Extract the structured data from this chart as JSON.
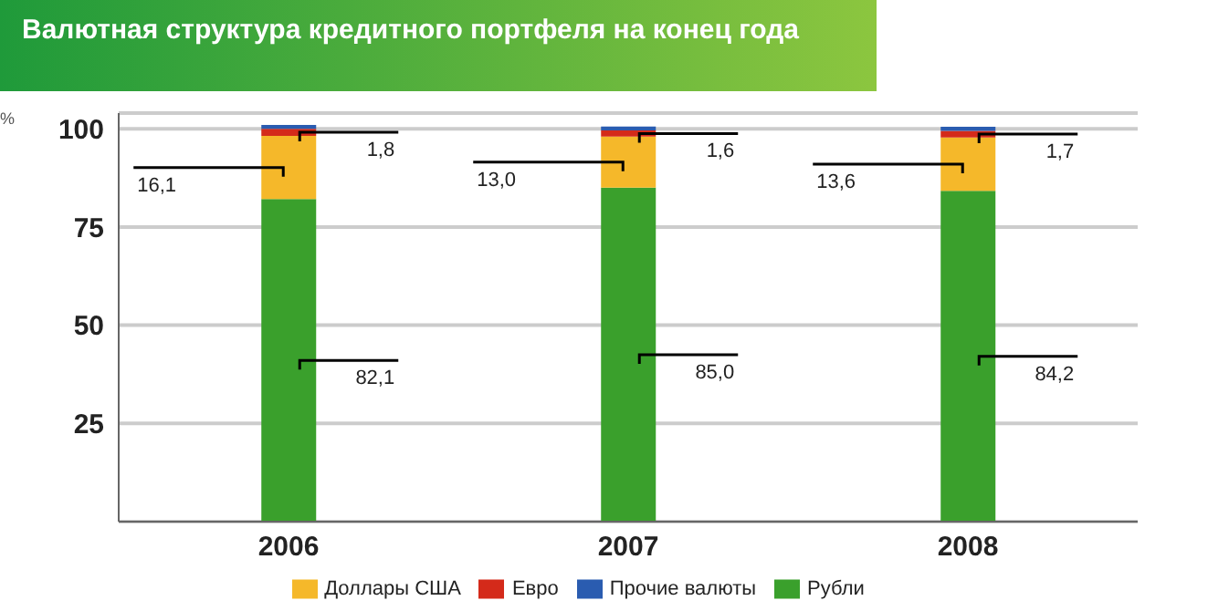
{
  "chart_data": {
    "type": "bar",
    "title": "Валютная структура кредитного портфеля на конец года",
    "ylabel": "%",
    "categories": [
      "2006",
      "2007",
      "2008"
    ],
    "stacked": true,
    "ylim": [
      0,
      104
    ],
    "yticks": [
      25,
      50,
      75,
      100
    ],
    "grid": "y",
    "legend": "bottom",
    "series": [
      {
        "name": "Рубли",
        "color": "#3aa02c",
        "values": [
          82.1,
          85.0,
          84.2
        ],
        "value_labels": [
          "82,1",
          "85,0",
          "84,2"
        ]
      },
      {
        "name": "Доллары США",
        "color": "#f5b82a",
        "values": [
          16.1,
          13.0,
          13.6
        ],
        "value_labels": [
          "16,1",
          "13,0",
          "13,6"
        ]
      },
      {
        "name": "Евро",
        "color": "#d42a1a",
        "values": [
          1.8,
          1.6,
          1.7
        ],
        "value_labels": [
          "1,8",
          "1,6",
          "1,7"
        ]
      },
      {
        "name": "Прочие валюты",
        "color": "#2a5cb0",
        "values": [
          1,
          1,
          1
        ]
      }
    ]
  }
}
